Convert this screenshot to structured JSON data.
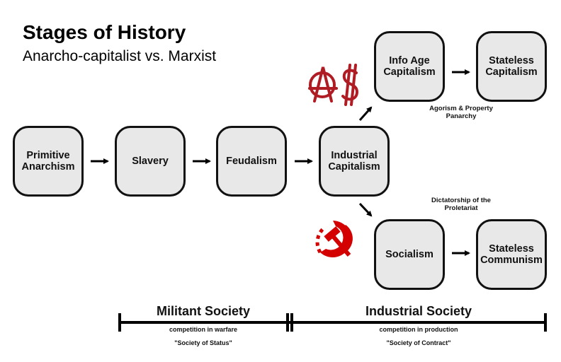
{
  "title": "Stages of History",
  "subtitle": "Anarcho-capitalist vs. Marxist",
  "stages": {
    "primitive": "Primitive Anarchism",
    "slavery": "Slavery",
    "feudalism": "Feudalism",
    "industrial": "Industrial Capitalism",
    "info_age": "Info Age Capitalism",
    "stateless_capitalism": "Stateless Capitalism",
    "socialism": "Socialism",
    "stateless_communism": "Stateless Communism"
  },
  "notes": {
    "agorism": "Agorism & Property Panarchy",
    "dictatorship": "Dictatorship of the Proletariat"
  },
  "icons": {
    "ancap": {
      "name": "anarcho-capitalism-icon",
      "color": "#b01c24"
    },
    "communism": {
      "name": "hammer-sickle-gear-icon",
      "color": "#d40000"
    }
  },
  "timeline": {
    "militant": {
      "label": "Militant Society",
      "desc": "competition in warfare",
      "quote": "\"Society of Status\""
    },
    "industrial": {
      "label": "Industrial Society",
      "desc": "competition in production",
      "quote": "\"Society of Contract\""
    }
  }
}
